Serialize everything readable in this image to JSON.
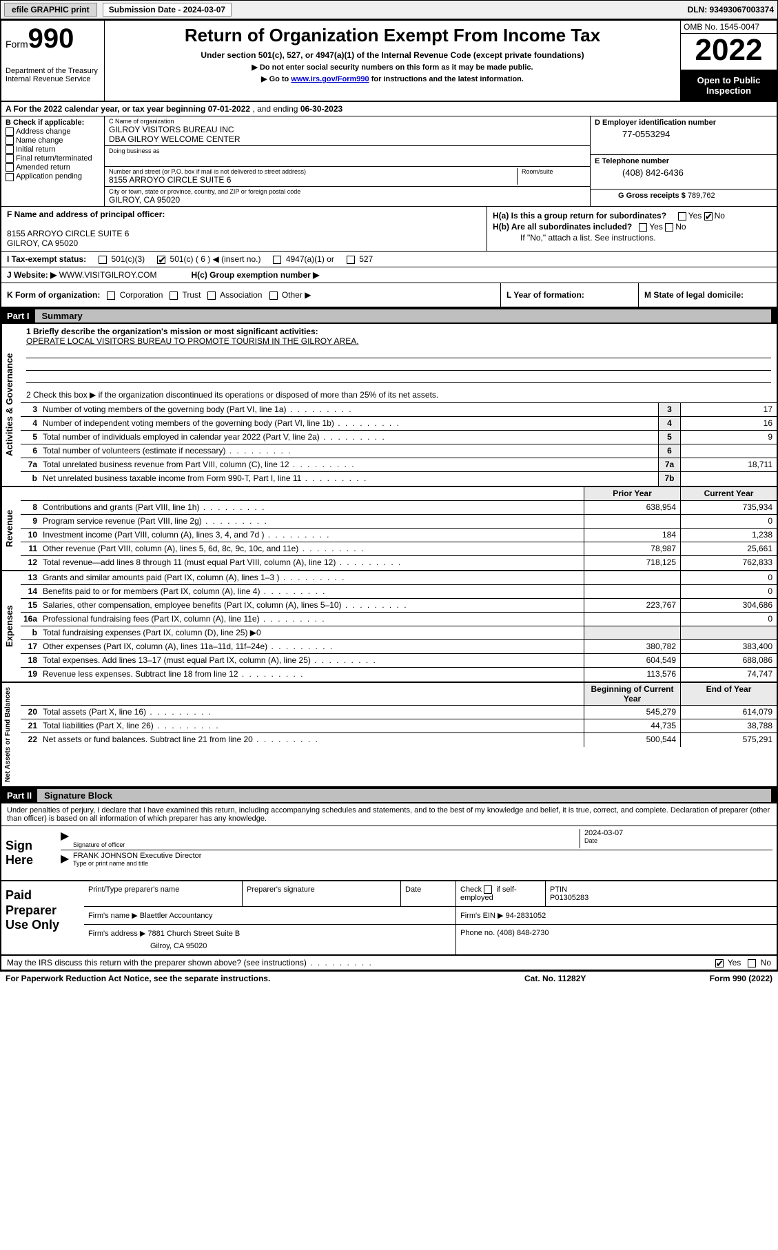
{
  "topbar": {
    "efile": "efile GRAPHIC print",
    "submission_label": "Submission Date - 2024-03-07",
    "dln": "DLN: 93493067003374"
  },
  "header": {
    "form_label": "Form",
    "form_number": "990",
    "dept": "Department of the Treasury",
    "irs": "Internal Revenue Service",
    "title": "Return of Organization Exempt From Income Tax",
    "sub1": "Under section 501(c), 527, or 4947(a)(1) of the Internal Revenue Code (except private foundations)",
    "sub2": "▶ Do not enter social security numbers on this form as it may be made public.",
    "sub3_pre": "▶ Go to ",
    "sub3_link": "www.irs.gov/Form990",
    "sub3_post": " for instructions and the latest information.",
    "omb": "OMB No. 1545-0047",
    "year": "2022",
    "open": "Open to Public Inspection"
  },
  "row_a": {
    "text_pre": "A  For the 2022 calendar year, or tax year beginning ",
    "begin": "07-01-2022",
    "mid": "   , and ending ",
    "end": "06-30-2023"
  },
  "col_b": {
    "label": "B Check if applicable:",
    "items": [
      "Address change",
      "Name change",
      "Initial return",
      "Final return/terminated",
      "Amended return",
      "Application pending"
    ]
  },
  "col_c": {
    "name_label": "C Name of organization",
    "name1": "GILROY VISITORS BUREAU INC",
    "name2": "DBA GILROY WELCOME CENTER",
    "dba_label": "Doing business as",
    "street_label": "Number and street (or P.O. box if mail is not delivered to street address)",
    "room_label": "Room/suite",
    "street": "8155 ARROYO CIRCLE SUITE 6",
    "city_label": "City or town, state or province, country, and ZIP or foreign postal code",
    "city": "GILROY, CA  95020"
  },
  "col_de": {
    "d_label": "D Employer identification number",
    "d_val": "77-0553294",
    "e_label": "E Telephone number",
    "e_val": "(408) 842-6436",
    "g_label": "G Gross receipts $ ",
    "g_val": "789,762"
  },
  "section_f": {
    "label": "F Name and address of principal officer:",
    "addr1": "8155 ARROYO CIRCLE SUITE 6",
    "addr2": "GILROY, CA  95020"
  },
  "section_h": {
    "ha_label": "H(a)  Is this a group return for subordinates?",
    "ha_yes": "Yes",
    "ha_no": "No",
    "hb_label": "H(b)  Are all subordinates included?",
    "hb_yes": "Yes",
    "hb_no": "No",
    "hb_note": "If \"No,\" attach a list. See instructions.",
    "hc_label": "H(c)  Group exemption number ▶"
  },
  "row_i": {
    "label": "I    Tax-exempt status:",
    "o1": "501(c)(3)",
    "o2": "501(c) ( 6 ) ◀ (insert no.)",
    "o3": "4947(a)(1) or",
    "o4": "527"
  },
  "row_j": {
    "label": "J   Website: ▶ ",
    "val": "WWW.VISITGILROY.COM"
  },
  "row_k": {
    "k_label": "K Form of organization:",
    "k_opts": [
      "Corporation",
      "Trust",
      "Association",
      "Other ▶"
    ],
    "l_label": "L Year of formation:",
    "m_label": "M State of legal domicile:"
  },
  "parts": {
    "p1": "Part I",
    "p1_title": "Summary",
    "p2": "Part II",
    "p2_title": "Signature Block"
  },
  "vtabs": {
    "gov": "Activities & Governance",
    "rev": "Revenue",
    "exp": "Expenses",
    "net": "Net Assets or Fund Balances"
  },
  "summary": {
    "q1": "1   Briefly describe the organization's mission or most significant activities:",
    "q1_val": "OPERATE LOCAL VISITORS BUREAU TO PROMOTE TOURISM IN THE GILROY AREA.",
    "q2": "2   Check this box ▶        if the organization discontinued its operations or disposed of more than 25% of its net assets.",
    "rows_gov": [
      {
        "n": "3",
        "d": "Number of voting members of the governing body (Part VI, line 1a)",
        "b": "3",
        "v": "17"
      },
      {
        "n": "4",
        "d": "Number of independent voting members of the governing body (Part VI, line 1b)",
        "b": "4",
        "v": "16"
      },
      {
        "n": "5",
        "d": "Total number of individuals employed in calendar year 2022 (Part V, line 2a)",
        "b": "5",
        "v": "9"
      },
      {
        "n": "6",
        "d": "Total number of volunteers (estimate if necessary)",
        "b": "6",
        "v": ""
      },
      {
        "n": "7a",
        "d": "Total unrelated business revenue from Part VIII, column (C), line 12",
        "b": "7a",
        "v": "18,711"
      },
      {
        "n": "b",
        "d": "Net unrelated business taxable income from Form 990-T, Part I, line 11",
        "b": "7b",
        "v": ""
      }
    ],
    "col_hdr_prior": "Prior Year",
    "col_hdr_curr": "Current Year",
    "col_hdr_beg": "Beginning of Current Year",
    "col_hdr_end": "End of Year",
    "rows_rev": [
      {
        "n": "8",
        "d": "Contributions and grants (Part VIII, line 1h)",
        "p": "638,954",
        "c": "735,934"
      },
      {
        "n": "9",
        "d": "Program service revenue (Part VIII, line 2g)",
        "p": "",
        "c": "0"
      },
      {
        "n": "10",
        "d": "Investment income (Part VIII, column (A), lines 3, 4, and 7d )",
        "p": "184",
        "c": "1,238"
      },
      {
        "n": "11",
        "d": "Other revenue (Part VIII, column (A), lines 5, 6d, 8c, 9c, 10c, and 11e)",
        "p": "78,987",
        "c": "25,661"
      },
      {
        "n": "12",
        "d": "Total revenue—add lines 8 through 11 (must equal Part VIII, column (A), line 12)",
        "p": "718,125",
        "c": "762,833"
      }
    ],
    "rows_exp": [
      {
        "n": "13",
        "d": "Grants and similar amounts paid (Part IX, column (A), lines 1–3 )",
        "p": "",
        "c": "0"
      },
      {
        "n": "14",
        "d": "Benefits paid to or for members (Part IX, column (A), line 4)",
        "p": "",
        "c": "0"
      },
      {
        "n": "15",
        "d": "Salaries, other compensation, employee benefits (Part IX, column (A), lines 5–10)",
        "p": "223,767",
        "c": "304,686"
      },
      {
        "n": "16a",
        "d": "Professional fundraising fees (Part IX, column (A), line 11e)",
        "p": "",
        "c": "0"
      },
      {
        "n": "b",
        "d": "Total fundraising expenses (Part IX, column (D), line 25) ▶0",
        "p": "—",
        "c": "—"
      },
      {
        "n": "17",
        "d": "Other expenses (Part IX, column (A), lines 11a–11d, 11f–24e)",
        "p": "380,782",
        "c": "383,400"
      },
      {
        "n": "18",
        "d": "Total expenses. Add lines 13–17 (must equal Part IX, column (A), line 25)",
        "p": "604,549",
        "c": "688,086"
      },
      {
        "n": "19",
        "d": "Revenue less expenses. Subtract line 18 from line 12",
        "p": "113,576",
        "c": "74,747"
      }
    ],
    "rows_net": [
      {
        "n": "20",
        "d": "Total assets (Part X, line 16)",
        "p": "545,279",
        "c": "614,079"
      },
      {
        "n": "21",
        "d": "Total liabilities (Part X, line 26)",
        "p": "44,735",
        "c": "38,788"
      },
      {
        "n": "22",
        "d": "Net assets or fund balances. Subtract line 21 from line 20",
        "p": "500,544",
        "c": "575,291"
      }
    ]
  },
  "sig_intro": "Under penalties of perjury, I declare that I have examined this return, including accompanying schedules and statements, and to the best of my knowledge and belief, it is true, correct, and complete. Declaration of preparer (other than officer) is based on all information of which preparer has any knowledge.",
  "sign": {
    "label": "Sign Here",
    "sig_label": "Signature of officer",
    "date_label": "Date",
    "date_val": "2024-03-07",
    "name": "FRANK JOHNSON Executive Director",
    "name_label": "Type or print name and title"
  },
  "paid": {
    "label": "Paid Preparer Use Only",
    "c1": "Print/Type preparer's name",
    "c2": "Preparer's signature",
    "c3": "Date",
    "c4a": "Check",
    "c4b": "if self-employed",
    "c5": "PTIN",
    "c5v": "P01305283",
    "firm_name_label": "Firm's name    ▶",
    "firm_name": "Blaettler Accountancy",
    "firm_ein_label": "Firm's EIN ▶",
    "firm_ein": "94-2831052",
    "firm_addr_label": "Firm's address ▶",
    "firm_addr1": "7881 Church Street Suite B",
    "firm_addr2": "Gilroy, CA  95020",
    "phone_label": "Phone no.",
    "phone": "(408) 848-2730"
  },
  "footer": {
    "may": "May the IRS discuss this return with the preparer shown above? (see instructions)",
    "yes": "Yes",
    "no": "No",
    "pra": "For Paperwork Reduction Act Notice, see the separate instructions.",
    "cat": "Cat. No. 11282Y",
    "form": "Form 990 (2022)"
  },
  "colors": {
    "link": "#0000cc",
    "grey_bg": "#eaeaea",
    "part_title_bg": "#bfbfbf"
  }
}
